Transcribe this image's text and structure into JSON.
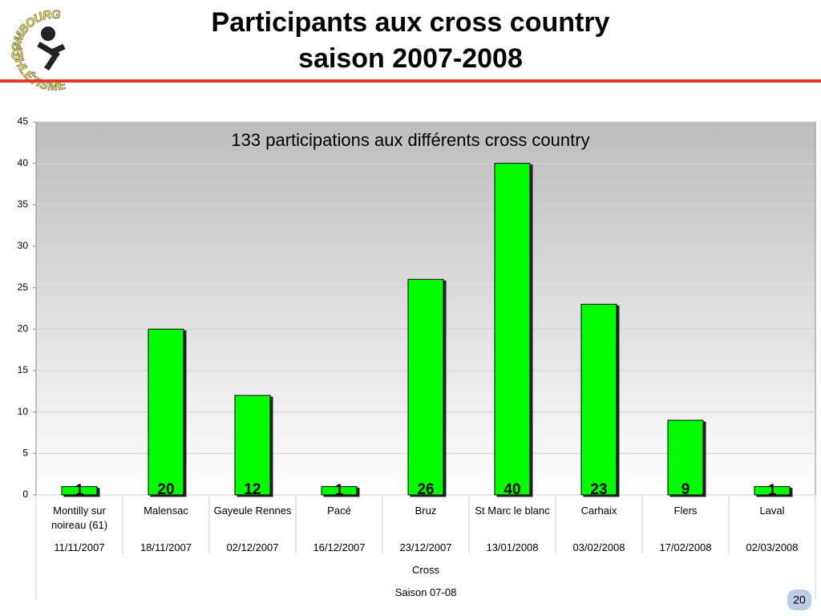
{
  "logo": {
    "top": "COMBOURG",
    "bottom": "ATHLÉTISME"
  },
  "page_number": "20",
  "chart_data": {
    "type": "bar",
    "title": [
      "Participants aux cross country",
      "saison 2007-2008"
    ],
    "subtitle": "133 participations aux différents cross country",
    "categories": [
      "Montilly sur noireau (61)",
      "Malensac",
      "Gayeule Rennes",
      "Pacé",
      "Bruz",
      "St Marc le blanc",
      "Carhaix",
      "Flers",
      "Laval"
    ],
    "dates": [
      "11/11/2007",
      "18/11/2007",
      "02/12/2007",
      "16/12/2007",
      "23/12/2007",
      "13/01/2008",
      "03/02/2008",
      "17/02/2008",
      "02/03/2008"
    ],
    "group_labels": [
      "Cross",
      "Saison 07-08"
    ],
    "values": [
      1,
      20,
      12,
      1,
      26,
      40,
      23,
      9,
      1
    ],
    "color": "#00ff00",
    "ylim": [
      0,
      45
    ],
    "yticks": [
      0,
      5,
      10,
      15,
      20,
      25,
      30,
      35,
      40,
      45
    ],
    "grid": true
  }
}
